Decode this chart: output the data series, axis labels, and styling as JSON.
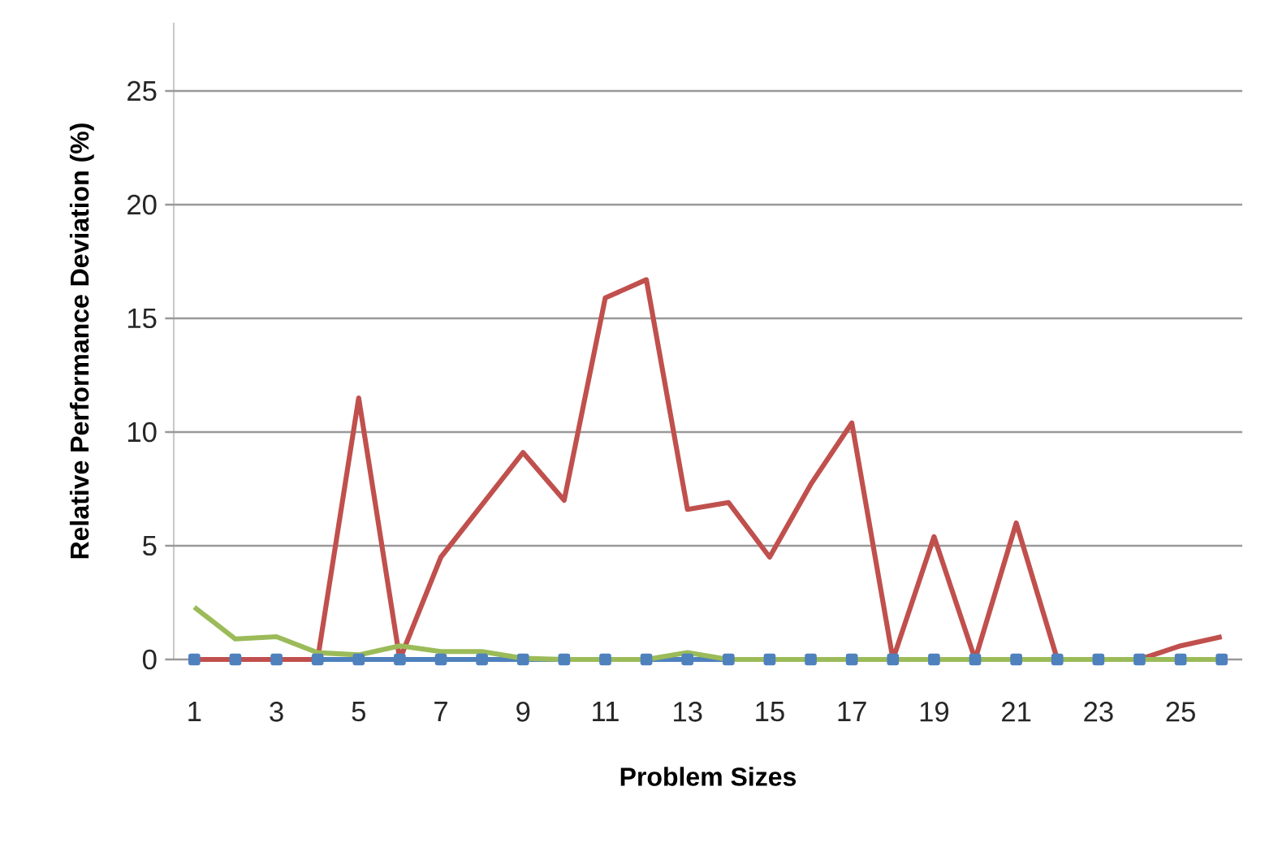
{
  "chart_data": {
    "type": "line",
    "xlabel": "Problem Sizes",
    "ylabel": "Relative Performance Deviation (%)",
    "categories": [
      "1",
      null,
      "3",
      null,
      "5",
      null,
      "7",
      null,
      "9",
      null,
      "11",
      null,
      "13",
      null,
      "15",
      null,
      "17",
      null,
      "19",
      null,
      "21",
      null,
      "23",
      null,
      "25",
      null
    ],
    "series": [
      {
        "color": "#4f81bd",
        "marker": "square",
        "values": [
          0,
          0,
          0,
          0,
          0,
          0,
          0,
          0,
          0,
          0,
          0,
          0,
          0,
          0,
          0,
          0,
          0,
          0,
          0,
          0,
          0,
          0,
          0,
          0,
          0,
          0
        ]
      },
      {
        "color": "#c0504d",
        "marker": "none",
        "values": [
          0,
          0,
          0,
          0,
          11.5,
          0,
          4.5,
          6.8,
          9.1,
          7.0,
          15.9,
          16.7,
          6.6,
          6.9,
          4.5,
          7.7,
          10.4,
          0,
          5.4,
          0,
          6.0,
          0,
          0,
          0,
          0.6,
          1.0
        ]
      },
      {
        "color": "#9bbb59",
        "marker": "none",
        "values": [
          2.3,
          0.9,
          1.0,
          0.3,
          0.2,
          0.6,
          0.35,
          0.35,
          0.05,
          0,
          0,
          0,
          0.3,
          0,
          0,
          0,
          0,
          0,
          0,
          0,
          0,
          0,
          0,
          0,
          0,
          0
        ]
      }
    ],
    "ylim": [
      0,
      28
    ],
    "yticks": [
      0,
      5,
      10,
      15,
      20,
      25
    ],
    "grid": "y"
  }
}
